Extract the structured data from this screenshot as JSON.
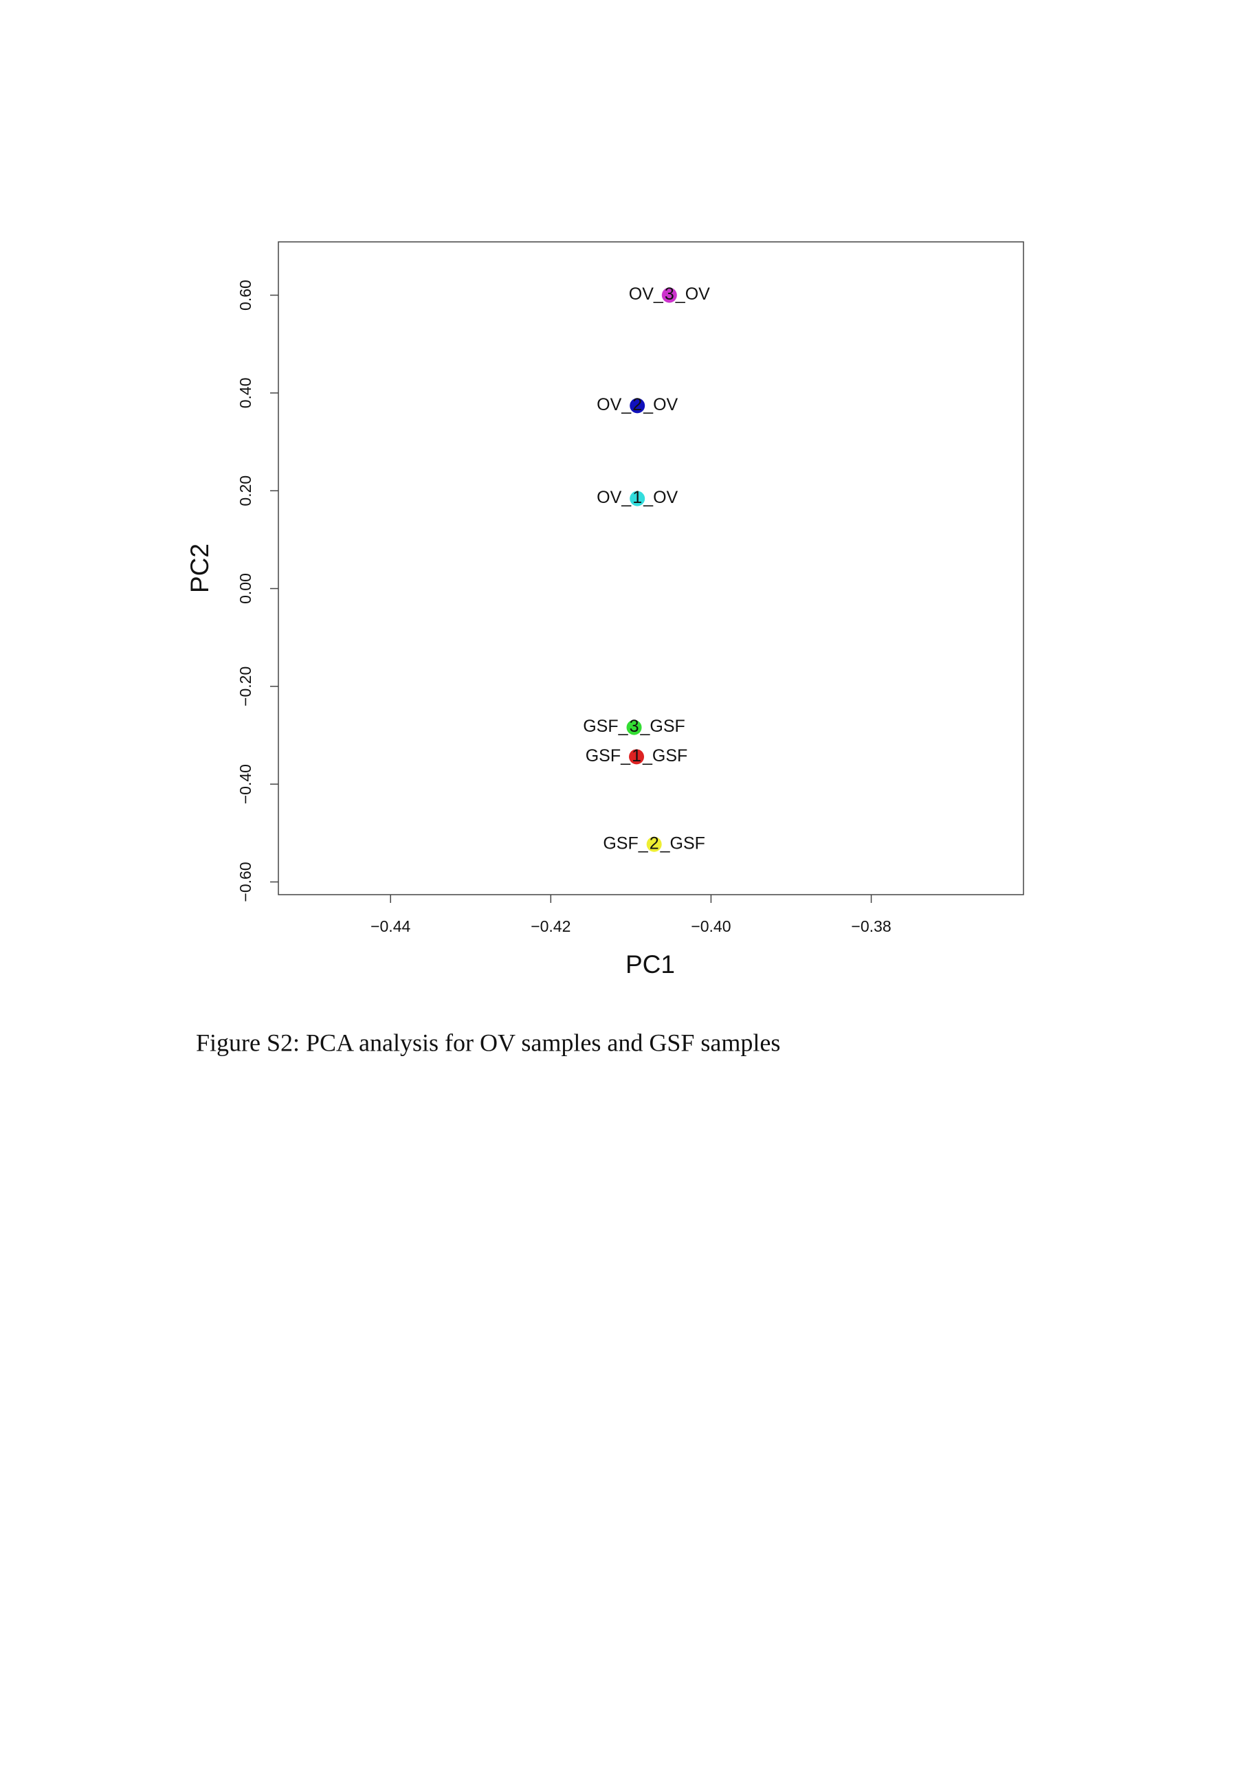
{
  "chart_data": {
    "type": "scatter",
    "x_label": "PC1",
    "y_label": "PC2",
    "xlim": [
      -0.454,
      -0.361
    ],
    "xticks": [
      -0.44,
      -0.42,
      -0.4,
      -0.38
    ],
    "ylim": [
      -0.626,
      0.709
    ],
    "yticks": [
      -0.6,
      -0.4,
      -0.2,
      0.0,
      0.2,
      0.4,
      0.6
    ],
    "points": [
      {
        "x": -0.4052,
        "y": 0.6,
        "color": "#cc33cc",
        "left": "OV_",
        "num": "3",
        "right": "_OV"
      },
      {
        "x": -0.4092,
        "y": 0.374,
        "color": "#1111bb",
        "left": "OV_",
        "num": "2",
        "right": "_OV"
      },
      {
        "x": -0.4092,
        "y": 0.184,
        "color": "#33dddd",
        "left": "OV_",
        "num": "1",
        "right": "_OV"
      },
      {
        "x": -0.4096,
        "y": -0.284,
        "color": "#33dd33",
        "left": "GSF_",
        "num": "3",
        "right": "_GSF"
      },
      {
        "x": -0.4093,
        "y": -0.344,
        "color": "#dd2222",
        "left": "GSF_",
        "num": "1",
        "right": "_GSF"
      },
      {
        "x": -0.4071,
        "y": -0.523,
        "color": "#eeee33",
        "left": "GSF_",
        "num": "2",
        "right": "_GSF"
      }
    ]
  },
  "caption": "Figure S2: PCA analysis for OV samples and GSF samples"
}
